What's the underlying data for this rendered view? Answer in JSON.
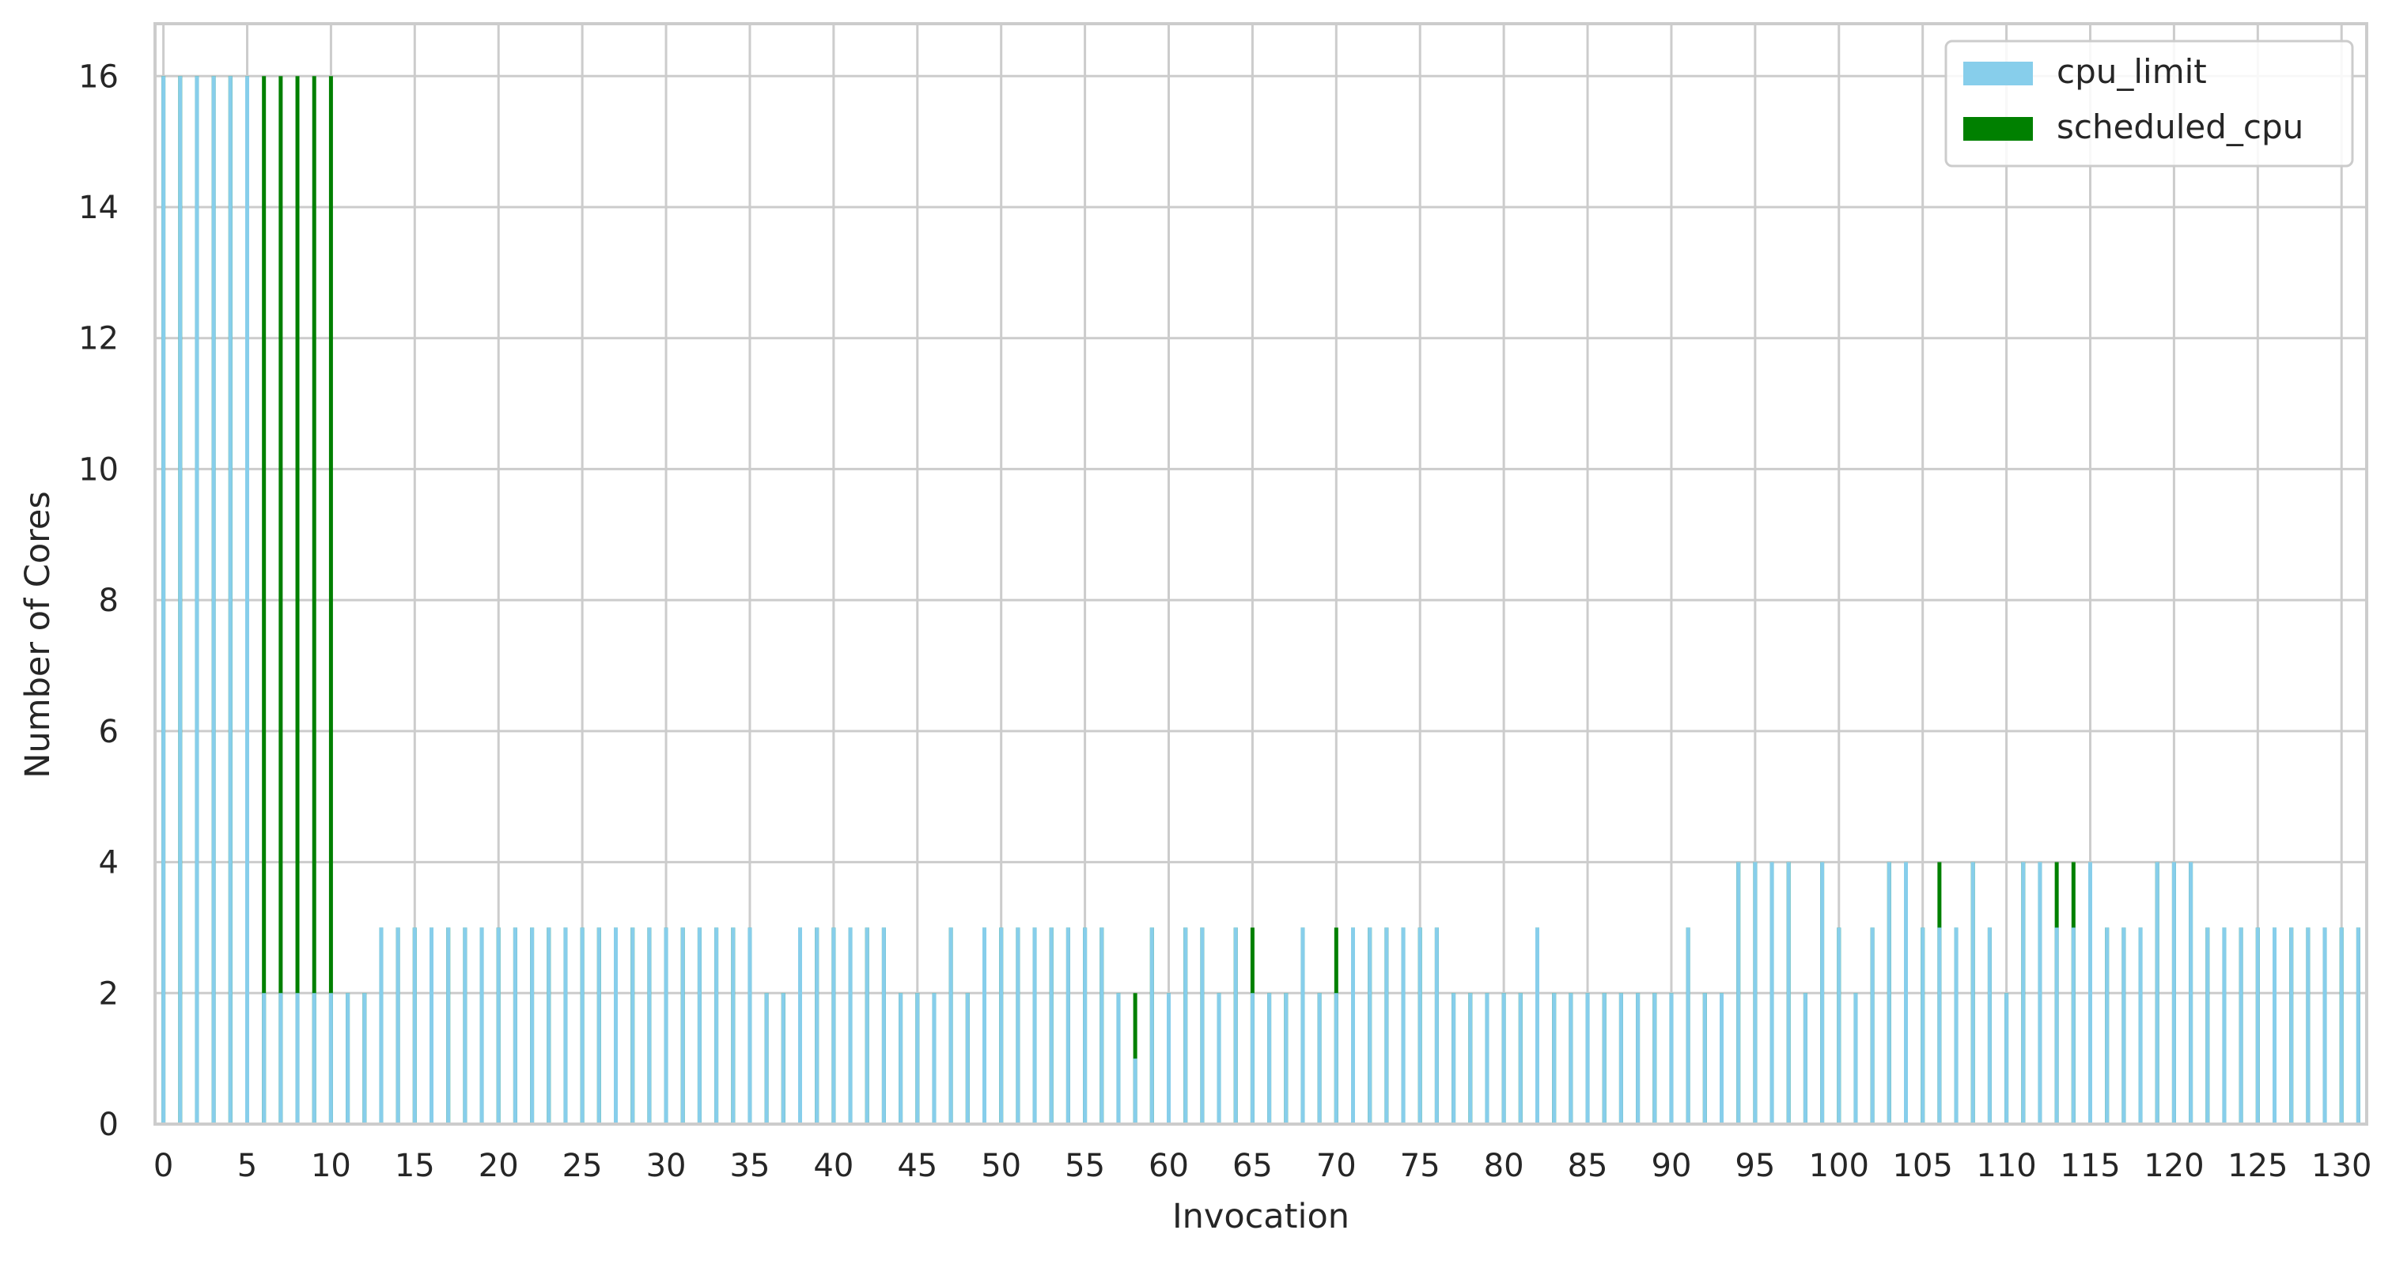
{
  "chart_data": {
    "type": "bar",
    "title": "",
    "xlabel": "Invocation",
    "ylabel": "Number of Cores",
    "ylim": [
      0,
      16.8
    ],
    "yticks": [
      0,
      2,
      4,
      6,
      8,
      10,
      12,
      14,
      16
    ],
    "xticks": [
      0,
      5,
      10,
      15,
      20,
      25,
      30,
      35,
      40,
      45,
      50,
      55,
      60,
      65,
      70,
      75,
      80,
      85,
      90,
      95,
      100,
      105,
      110,
      115,
      120,
      125,
      130
    ],
    "grid": true,
    "legend_position": "top-right",
    "categories": [
      0,
      1,
      2,
      3,
      4,
      5,
      6,
      7,
      8,
      9,
      10,
      11,
      12,
      13,
      14,
      15,
      16,
      17,
      18,
      19,
      20,
      21,
      22,
      23,
      24,
      25,
      26,
      27,
      28,
      29,
      30,
      31,
      32,
      33,
      34,
      35,
      36,
      37,
      38,
      39,
      40,
      41,
      42,
      43,
      44,
      45,
      46,
      47,
      48,
      49,
      50,
      51,
      52,
      53,
      54,
      55,
      56,
      57,
      58,
      59,
      60,
      61,
      62,
      63,
      64,
      65,
      66,
      67,
      68,
      69,
      70,
      71,
      72,
      73,
      74,
      75,
      76,
      77,
      78,
      79,
      80,
      81,
      82,
      83,
      84,
      85,
      86,
      87,
      88,
      89,
      90,
      91,
      92,
      93,
      94,
      95,
      96,
      97,
      98,
      99,
      100,
      101,
      102,
      103,
      104,
      105,
      106,
      107,
      108,
      109,
      110,
      111,
      112,
      113,
      114,
      115,
      116,
      117,
      118,
      119,
      120,
      121,
      122,
      123,
      124,
      125,
      126,
      127,
      128,
      129,
      130,
      131
    ],
    "series": [
      {
        "name": "cpu_limit",
        "color": "#87ceeb",
        "values": [
          16,
          16,
          16,
          16,
          16,
          16,
          2,
          2,
          2,
          2,
          2,
          2,
          2,
          3,
          3,
          3,
          3,
          3,
          3,
          3,
          3,
          3,
          3,
          3,
          3,
          3,
          3,
          3,
          3,
          3,
          3,
          3,
          3,
          3,
          3,
          3,
          2,
          2,
          3,
          3,
          3,
          3,
          3,
          3,
          2,
          2,
          2,
          3,
          2,
          3,
          3,
          3,
          3,
          3,
          3,
          3,
          3,
          2,
          1,
          3,
          2,
          3,
          3,
          2,
          3,
          2,
          2,
          2,
          3,
          2,
          2,
          3,
          3,
          3,
          3,
          3,
          3,
          2,
          2,
          2,
          2,
          2,
          3,
          2,
          2,
          2,
          2,
          2,
          2,
          2,
          2,
          3,
          2,
          2,
          4,
          4,
          4,
          4,
          2,
          4,
          3,
          2,
          3,
          4,
          4,
          3,
          3,
          3,
          4,
          3,
          2,
          4,
          4,
          3,
          3,
          4,
          3,
          3,
          3,
          4,
          4,
          4,
          3,
          3,
          3,
          3,
          3,
          3,
          3,
          3,
          3,
          3
        ]
      },
      {
        "name": "scheduled_cpu",
        "color": "#008000",
        "values": [
          16,
          16,
          16,
          16,
          16,
          16,
          16,
          16,
          16,
          16,
          16,
          2,
          2,
          3,
          3,
          3,
          3,
          3,
          3,
          3,
          3,
          3,
          3,
          3,
          3,
          3,
          3,
          3,
          3,
          3,
          3,
          3,
          3,
          3,
          3,
          3,
          2,
          2,
          3,
          3,
          3,
          3,
          3,
          3,
          2,
          2,
          2,
          3,
          2,
          3,
          3,
          3,
          3,
          3,
          3,
          3,
          3,
          2,
          2,
          3,
          2,
          3,
          3,
          2,
          3,
          3,
          2,
          2,
          3,
          2,
          3,
          3,
          3,
          3,
          3,
          3,
          3,
          2,
          2,
          2,
          2,
          2,
          3,
          2,
          2,
          2,
          2,
          2,
          2,
          2,
          2,
          3,
          2,
          2,
          4,
          4,
          4,
          4,
          2,
          4,
          3,
          2,
          3,
          4,
          4,
          3,
          4,
          3,
          4,
          3,
          2,
          4,
          4,
          4,
          4,
          4,
          3,
          3,
          3,
          4,
          4,
          4,
          3,
          3,
          3,
          3,
          3,
          3,
          3,
          3,
          3,
          3
        ]
      }
    ]
  }
}
